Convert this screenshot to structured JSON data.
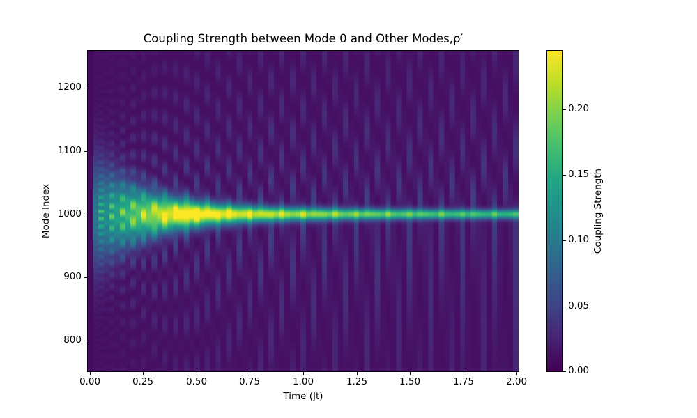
{
  "chart_data": {
    "type": "heatmap",
    "title": "Coupling Strength between Mode 0 and Other Modes,ρ′",
    "xlabel": "Time (Jt)",
    "ylabel": "Mode Index",
    "xlim": [
      -0.013,
      2.013
    ],
    "ylim": [
      750,
      1260
    ],
    "xticks": [
      0.0,
      0.25,
      0.5,
      0.75,
      1.0,
      1.25,
      1.5,
      1.75,
      2.0
    ],
    "xtick_labels": [
      "0.00",
      "0.25",
      "0.50",
      "0.75",
      "1.00",
      "1.25",
      "1.50",
      "1.75",
      "2.00"
    ],
    "yticks": [
      800,
      900,
      1000,
      1100,
      1200
    ],
    "ytick_labels": [
      "800",
      "900",
      "1000",
      "1100",
      "1200"
    ],
    "colorbar": {
      "label": "Coupling Strength",
      "colormap": "viridis",
      "range": [
        0.0,
        0.245
      ],
      "ticks": [
        0.0,
        0.05,
        0.1,
        0.15,
        0.2
      ],
      "tick_labels": [
        "0.00",
        "0.05",
        "0.10",
        "0.15",
        "0.20"
      ]
    },
    "grid": false,
    "description": "Coupling strength peaks along mode index 1000; the central band is broad and teal (~0.12) at Jt≈0.1–0.2, reaches a maximum yellow (~0.24) around Jt≈0.4–0.5, then narrows and fades to ~0.12 at Jt=2.0. Interference fringes fan out symmetrically above and below mode 1000, with vertical striping at early times (Jt<0.3).",
    "features": {
      "center_mode": 1000,
      "time_bin_width": 0.025,
      "peak_value": 0.245,
      "peak_time": 0.45,
      "band_value_at_t_0_15": 0.12,
      "band_value_at_t_1_0": 0.17,
      "band_value_at_t_2_0": 0.12,
      "band_halfwidth_at_t_0_15": 45,
      "band_halfwidth_at_t_0_5": 12,
      "band_halfwidth_at_t_2_0": 4,
      "background_value": 0.01
    }
  }
}
